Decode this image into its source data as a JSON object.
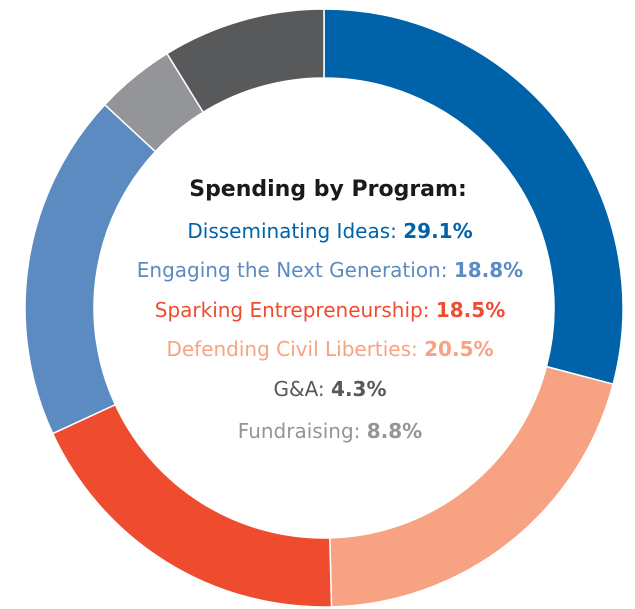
{
  "chart_data": {
    "type": "pie",
    "title": "Spending by Program:",
    "categories": [
      "Disseminating Ideas:",
      "Defending Civil Liberties:",
      "Sparking Entrepreneurship:",
      "Engaging the Next Generation:",
      "G&A:",
      "Fundraising:"
    ],
    "values": [
      29.1,
      20.5,
      18.5,
      18.8,
      4.3,
      8.8
    ],
    "value_labels": [
      "29.1%",
      "20.5%",
      "18.5%",
      "18.8%",
      "4.3%",
      "8.8%"
    ],
    "colors": [
      "#0063a9",
      "#f7a383",
      "#ef4c2f",
      "#5c8bc2",
      "#939598",
      "#58595b"
    ],
    "label_colors": [
      "#0063a9",
      "#f7a383",
      "#ef4c2f",
      "#5c8bc2",
      "#58595b",
      "#939598"
    ]
  }
}
